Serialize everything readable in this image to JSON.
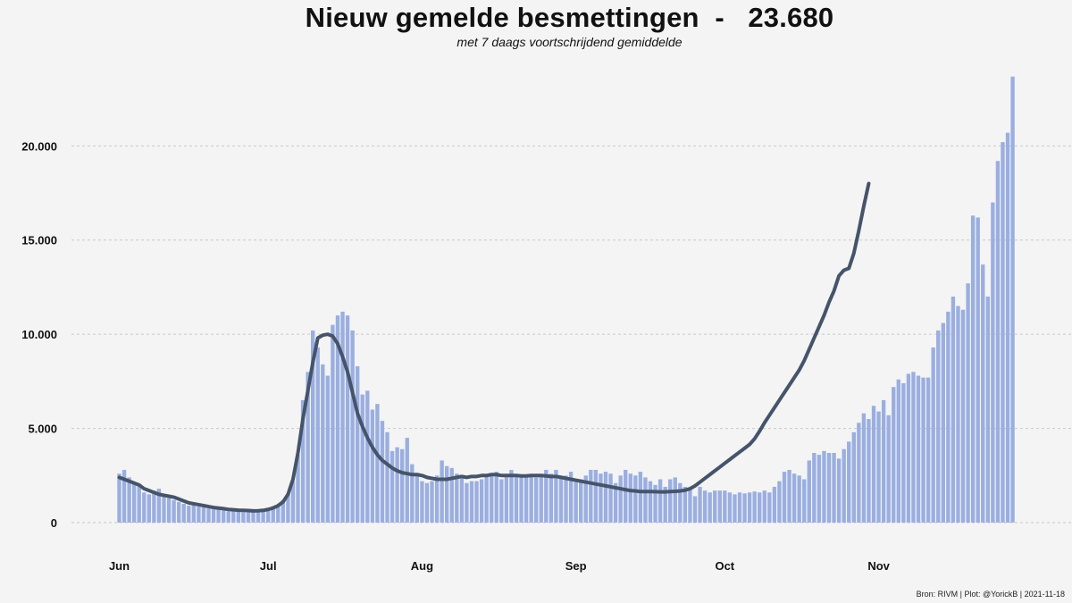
{
  "title": "Nieuw gemelde besmettingen",
  "title_separator": "-",
  "title_value": "23.680",
  "subtitle": "met 7 daags voortschrijdend gemiddelde",
  "caption": "Bron: RIVM | Plot: @YorickB |  2021-11-18",
  "colors": {
    "bar": "#9aaee0",
    "line": "#45546a",
    "grid": "#c8c8c8",
    "background": "#f4f4f4"
  },
  "chart_data": {
    "type": "bar",
    "title": "Nieuw gemelde besmettingen  -   23.680",
    "subtitle": "met 7 daags voortschrijdend gemiddelde",
    "x_start": "2021-06-01",
    "x_end": "2021-11-18",
    "x_ticks": [
      {
        "label": "Jun",
        "date": "2021-06-01"
      },
      {
        "label": "Jul",
        "date": "2021-07-01"
      },
      {
        "label": "Aug",
        "date": "2021-08-01"
      },
      {
        "label": "Sep",
        "date": "2021-09-01"
      },
      {
        "label": "Oct",
        "date": "2021-10-01"
      },
      {
        "label": "Nov",
        "date": "2021-11-01"
      }
    ],
    "y_ticks": [
      {
        "value": 0,
        "label": "0"
      },
      {
        "value": 5000,
        "label": "5.000"
      },
      {
        "value": 10000,
        "label": "10.000"
      },
      {
        "value": 15000,
        "label": "15.000"
      },
      {
        "value": 20000,
        "label": "20.000"
      }
    ],
    "ylim": [
      -1500,
      24500
    ],
    "grid": "horizontal dashed",
    "legend": "none",
    "series": [
      {
        "type": "bar",
        "values": [
          2600,
          2800,
          2400,
          2100,
          2000,
          1600,
          1500,
          1700,
          1800,
          1400,
          1300,
          1200,
          1100,
          1000,
          900,
          950,
          850,
          800,
          750,
          700,
          700,
          650,
          600,
          600,
          580,
          560,
          550,
          600,
          550,
          600,
          650,
          750,
          900,
          1200,
          1500,
          2200,
          3600,
          6500,
          8000,
          10200,
          9300,
          8400,
          7800,
          10500,
          11000,
          11200,
          11000,
          10200,
          8300,
          6800,
          7000,
          6000,
          6300,
          5400,
          4800,
          3800,
          4000,
          3900,
          4500,
          3100,
          2500,
          2200,
          2100,
          2200,
          2500,
          3300,
          3000,
          2900,
          2600,
          2400,
          2100,
          2200,
          2200,
          2300,
          2500,
          2600,
          2700,
          2300,
          2500,
          2800,
          2500,
          2400,
          2400,
          2500,
          2400,
          2500,
          2800,
          2600,
          2800,
          2500,
          2500,
          2700,
          2200,
          2300,
          2500,
          2800,
          2800,
          2600,
          2700,
          2600,
          2100,
          2500,
          2800,
          2600,
          2500,
          2700,
          2400,
          2200,
          2000,
          2300,
          1900,
          2300,
          2400,
          2100,
          1900,
          1800,
          1400,
          1900,
          1700,
          1600,
          1700,
          1700,
          1700,
          1600,
          1500,
          1600,
          1550,
          1600,
          1650,
          1600,
          1700,
          1600,
          1900,
          2200,
          2700,
          2800,
          2600,
          2500,
          2300,
          3300,
          3700,
          3600,
          3800,
          3700,
          3700,
          3400,
          3900,
          4300,
          4800,
          5300,
          5800,
          5500,
          6200,
          5900,
          6500,
          5700,
          7200,
          7600,
          7400,
          7900,
          8000,
          7800,
          7700,
          7700,
          9300,
          10200,
          10600,
          11200,
          12000,
          11500,
          11300,
          12700,
          16300,
          16200,
          13700,
          12000,
          17000,
          19200,
          20200,
          20700,
          23680
        ]
      },
      {
        "type": "line",
        "name": "7 daags voortschrijdend gemiddelde",
        "start_index": 0,
        "values": [
          2400,
          2300,
          2200,
          2100,
          2000,
          1800,
          1700,
          1600,
          1500,
          1450,
          1400,
          1350,
          1250,
          1150,
          1050,
          1000,
          950,
          900,
          850,
          800,
          770,
          740,
          700,
          680,
          660,
          650,
          640,
          620,
          630,
          650,
          700,
          780,
          900,
          1100,
          1500,
          2300,
          3700,
          5500,
          7000,
          8500,
          9800,
          9950,
          10000,
          9900,
          9500,
          8800,
          8000,
          6900,
          5800,
          5100,
          4500,
          4000,
          3600,
          3300,
          3100,
          2900,
          2750,
          2650,
          2600,
          2550,
          2550,
          2500,
          2400,
          2350,
          2300,
          2300,
          2300,
          2350,
          2400,
          2450,
          2400,
          2450,
          2450,
          2500,
          2500,
          2550,
          2550,
          2500,
          2500,
          2500,
          2500,
          2480,
          2480,
          2500,
          2500,
          2500,
          2480,
          2450,
          2450,
          2400,
          2350,
          2300,
          2250,
          2200,
          2150,
          2100,
          2050,
          2000,
          1950,
          1900,
          1850,
          1800,
          1750,
          1700,
          1680,
          1650,
          1650,
          1650,
          1640,
          1630,
          1630,
          1650,
          1660,
          1680,
          1720,
          1800,
          1950,
          2150,
          2350,
          2550,
          2750,
          2950,
          3150,
          3350,
          3550,
          3750,
          3950,
          4150,
          4450,
          4850,
          5300,
          5700,
          6100,
          6500,
          6900,
          7300,
          7700,
          8100,
          8600,
          9200,
          9800,
          10400,
          11000,
          11700,
          12300,
          13100,
          13400,
          13500,
          14300,
          15500,
          16800,
          18000
        ]
      }
    ]
  }
}
